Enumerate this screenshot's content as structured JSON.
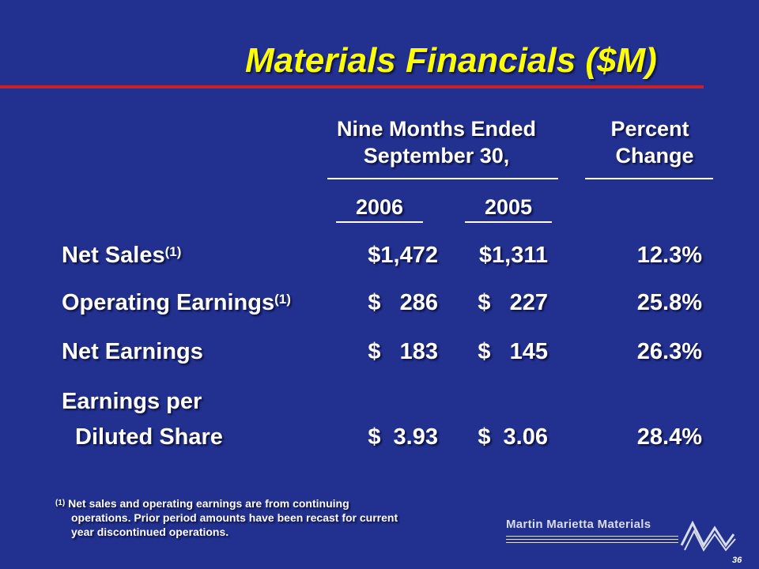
{
  "title": "Materials Financials ($M)",
  "header": {
    "period_line1": "Nine Months Ended",
    "period_line2": "September 30,",
    "change_line1": "Percent",
    "change_line2": "Change",
    "year1": "2006",
    "year2": "2005"
  },
  "rows": [
    {
      "label": "Net Sales",
      "note": "(1)",
      "v2006": "$1,472",
      "v2005": "$1,311",
      "change": "12.3%"
    },
    {
      "label": "Operating Earnings",
      "note": "(1)",
      "v2006": "$   286",
      "v2005": "$   227",
      "change": "25.8%"
    },
    {
      "label": "Net Earnings",
      "v2006": "$   183",
      "v2005": "$   145",
      "change": "26.3%"
    },
    {
      "label_line1": "Earnings per",
      "label_line2": "Diluted Share",
      "v2006": "$  3.93",
      "v2005": "$  3.06",
      "change": "28.4%"
    }
  ],
  "footnote": {
    "marker": "(1)",
    "line1": "Net sales and operating earnings are from continuing",
    "line2": "operations. Prior period amounts have been recast for current",
    "line3": "year discontinued operations."
  },
  "logo": {
    "text": "Martin Marietta Materials",
    "icon": "mountain-logo-icon"
  },
  "page_number": "36",
  "colors": {
    "background": "#22308f",
    "title": "#ffff00",
    "accent_rule": "#cc1f2a",
    "text": "#ffffff"
  }
}
